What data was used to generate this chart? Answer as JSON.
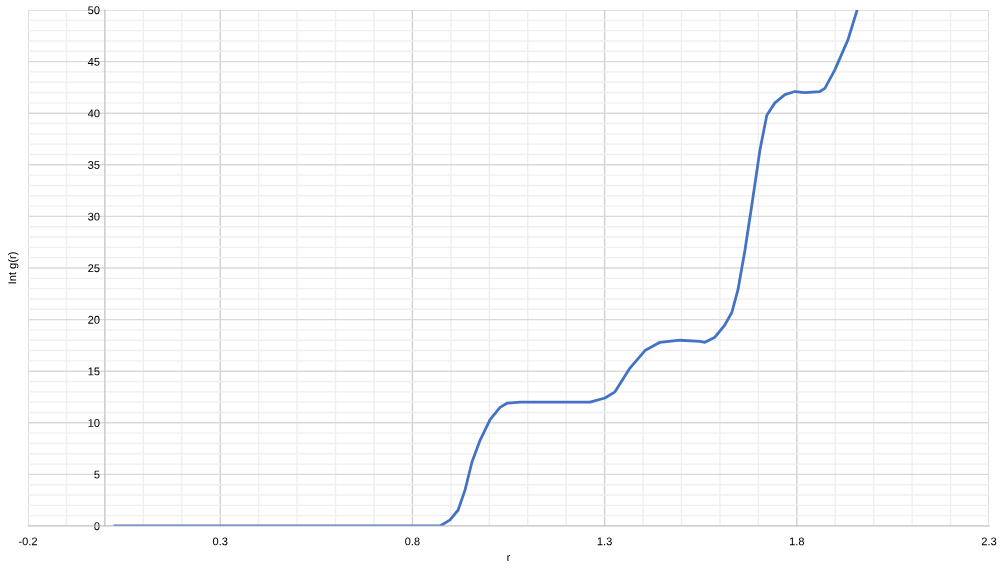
{
  "chart_data": {
    "type": "line",
    "xlabel": "r",
    "ylabel": "Int g(r)",
    "xlim": [
      -0.2,
      2.3
    ],
    "xticks": [
      -0.2,
      0.3,
      0.8,
      1.3,
      1.8,
      2.3
    ],
    "ylim": [
      0,
      50
    ],
    "yticks": [
      0,
      5,
      10,
      15,
      20,
      25,
      30,
      35,
      40,
      45,
      50
    ],
    "grid": true,
    "legend": false,
    "marker": "none",
    "line_style": "solid",
    "series": [
      {
        "color": "#4472c4",
        "x": [
          0.026,
          0.2,
          0.4,
          0.6,
          0.8,
          0.846,
          0.872,
          0.898,
          0.919,
          0.937,
          0.955,
          0.976,
          1.002,
          1.028,
          1.046,
          1.08,
          1.184,
          1.262,
          1.301,
          1.327,
          1.366,
          1.405,
          1.444,
          1.496,
          1.548,
          1.561,
          1.587,
          1.613,
          1.631,
          1.647,
          1.665,
          1.683,
          1.704,
          1.722,
          1.743,
          1.769,
          1.795,
          1.821,
          1.86,
          1.873,
          1.899,
          1.933,
          1.957
        ],
        "values": [
          0,
          0,
          0,
          0,
          0,
          0,
          0,
          0.6,
          1.55,
          3.5,
          6.2,
          8.3,
          10.3,
          11.5,
          11.9,
          12.0,
          12.0,
          12.0,
          12.4,
          13.0,
          15.3,
          17.0,
          17.8,
          18.0,
          17.9,
          17.8,
          18.3,
          19.5,
          20.7,
          22.9,
          26.7,
          31.1,
          36.4,
          39.8,
          41.0,
          41.8,
          42.1,
          42.0,
          42.1,
          42.4,
          44.2,
          47.1,
          50.0
        ]
      }
    ]
  }
}
